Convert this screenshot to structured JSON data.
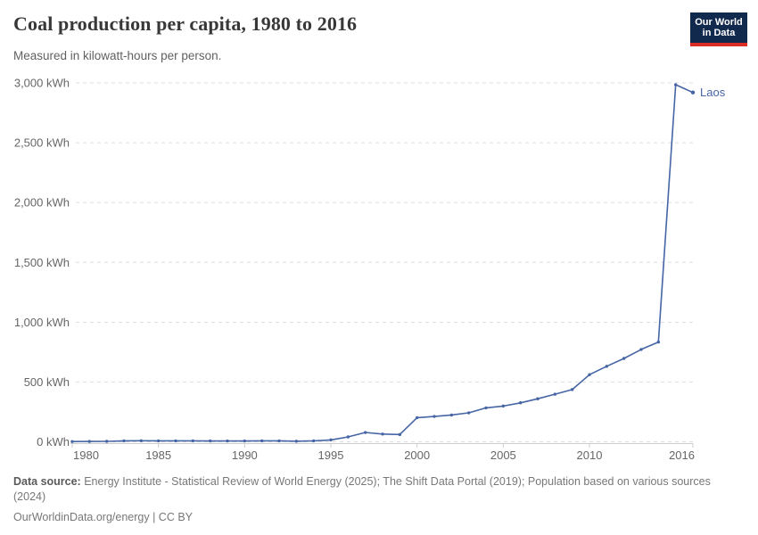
{
  "header": {
    "title": "Coal production per capita, 1980 to 2016",
    "subtitle": "Measured in kilowatt-hours per person.",
    "logo": {
      "line1": "Our World",
      "line2": "in Data"
    }
  },
  "chart_data": {
    "type": "line",
    "title": "Coal production per capita, 1980 to 2016",
    "ylabel": "kilowatt-hours per person",
    "xlabel": "",
    "xlim": [
      1980,
      2016
    ],
    "ylim": [
      0,
      3000
    ],
    "grid": "dashed-horizontal",
    "legend_position": "end-of-line-label",
    "x_ticks": [
      1980,
      1985,
      1990,
      1995,
      2000,
      2005,
      2010,
      2016
    ],
    "y_ticks": [
      0,
      500,
      1000,
      1500,
      2000,
      2500,
      3000
    ],
    "y_tick_labels": [
      "0 kWh",
      "500 kWh",
      "1,000 kWh",
      "1,500 kWh",
      "2,000 kWh",
      "2,500 kWh",
      "3,000 kWh"
    ],
    "x": [
      1980,
      1981,
      1982,
      1983,
      1984,
      1985,
      1986,
      1987,
      1988,
      1989,
      1990,
      1991,
      1992,
      1993,
      1994,
      1995,
      1996,
      1997,
      1998,
      1999,
      2000,
      2001,
      2002,
      2003,
      2004,
      2005,
      2006,
      2007,
      2008,
      2009,
      2010,
      2011,
      2012,
      2013,
      2014,
      2015,
      2016
    ],
    "series": [
      {
        "name": "Laos",
        "color": "#4665a5",
        "values": [
          2,
          3,
          4,
          8,
          9,
          8,
          8,
          8,
          7,
          7,
          7,
          8,
          8,
          5,
          8,
          16,
          41,
          78,
          65,
          61,
          202,
          212,
          224,
          242,
          284,
          299,
          326,
          360,
          398,
          437,
          561,
          631,
          697,
          772,
          834,
          2985,
          2920
        ]
      }
    ]
  },
  "footer": {
    "source_label": "Data source:",
    "source_text": "Energy Institute - Statistical Review of World Energy (2025); The Shift Data Portal (2019); Population based on various sources (2024)",
    "link_text": "OurWorldinData.org/energy | CC BY"
  },
  "colors": {
    "line": "#4665a5",
    "gridline": "#dddddd",
    "axis": "#cccccc",
    "tick_text": "#666666",
    "logo_bg": "#12294e",
    "logo_accent": "#dc2d25"
  }
}
